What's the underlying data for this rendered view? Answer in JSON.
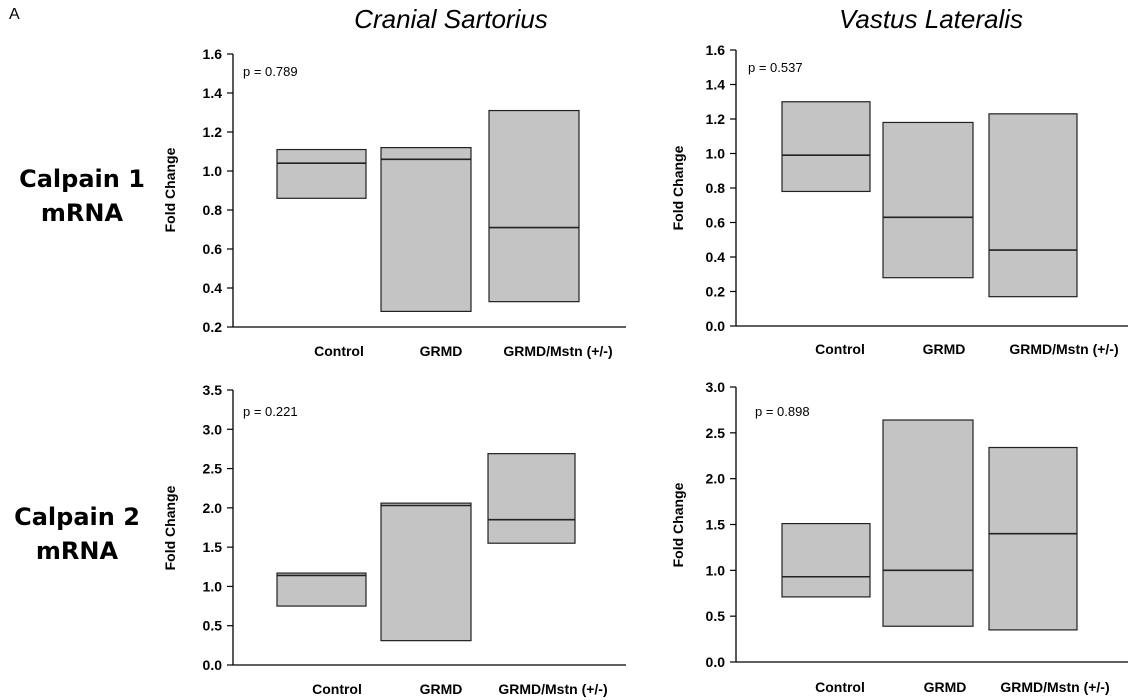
{
  "panel_letter": "A",
  "column_titles": [
    "Cranial Sartorius",
    "Vastus Lateralis"
  ],
  "row_labels": [
    {
      "line1": "Calpain 1",
      "line2": "mRNA"
    },
    {
      "line1": "Calpain 2",
      "line2": "mRNA"
    }
  ],
  "colors": {
    "box_fill": "#c4c4c4",
    "box_stroke": "#222222",
    "axis": "#000000"
  },
  "chart_data": [
    {
      "type": "box",
      "title": "",
      "ylabel": "Fold Change",
      "annotation": "p = 0.789",
      "categories": [
        "Control",
        "GRMD",
        "GRMD/Mstn (+/-)"
      ],
      "ylim": [
        0.2,
        1.6
      ],
      "yticks": [
        "0.2",
        "0.4",
        "0.6",
        "0.8",
        "1.0",
        "1.2",
        "1.4",
        "1.6"
      ],
      "boxes": [
        {
          "low": 0.86,
          "median": 1.04,
          "high": 1.11
        },
        {
          "low": 0.28,
          "median": 1.06,
          "high": 1.12
        },
        {
          "low": 0.33,
          "median": 0.71,
          "high": 1.31
        }
      ]
    },
    {
      "type": "box",
      "title": "",
      "ylabel": "Fold Change",
      "annotation": "p = 0.537",
      "categories": [
        "Control",
        "GRMD",
        "GRMD/Mstn (+/-)"
      ],
      "ylim": [
        0.0,
        1.6
      ],
      "yticks": [
        "0.0",
        "0.2",
        "0.4",
        "0.6",
        "0.8",
        "1.0",
        "1.2",
        "1.4",
        "1.6"
      ],
      "boxes": [
        {
          "low": 0.78,
          "median": 0.99,
          "high": 1.3
        },
        {
          "low": 0.28,
          "median": 0.63,
          "high": 1.18
        },
        {
          "low": 0.17,
          "median": 0.44,
          "high": 1.23
        }
      ]
    },
    {
      "type": "box",
      "title": "",
      "ylabel": "Fold Change",
      "annotation": "p = 0.221",
      "categories": [
        "Control",
        "GRMD",
        "GRMD/Mstn (+/-)"
      ],
      "ylim": [
        0.0,
        3.5
      ],
      "yticks": [
        "0.0",
        "0.5",
        "1.0",
        "1.5",
        "2.0",
        "2.5",
        "3.0",
        "3.5"
      ],
      "boxes": [
        {
          "low": 0.75,
          "median": 1.14,
          "high": 1.17
        },
        {
          "low": 0.31,
          "median": 2.03,
          "high": 2.06
        },
        {
          "low": 1.55,
          "median": 1.85,
          "high": 2.69
        }
      ]
    },
    {
      "type": "box",
      "title": "",
      "ylabel": "Fold Change",
      "annotation": "p = 0.898",
      "categories": [
        "Control",
        "GRMD",
        "GRMD/Mstn (+/-)"
      ],
      "ylim": [
        0.0,
        3.0
      ],
      "yticks": [
        "0.0",
        "0.5",
        "1.0",
        "1.5",
        "2.0",
        "2.5",
        "3.0"
      ],
      "boxes": [
        {
          "low": 0.71,
          "median": 0.93,
          "high": 1.51
        },
        {
          "low": 0.39,
          "median": 1.0,
          "high": 2.64
        },
        {
          "low": 0.35,
          "median": 1.4,
          "high": 2.34
        }
      ]
    }
  ]
}
